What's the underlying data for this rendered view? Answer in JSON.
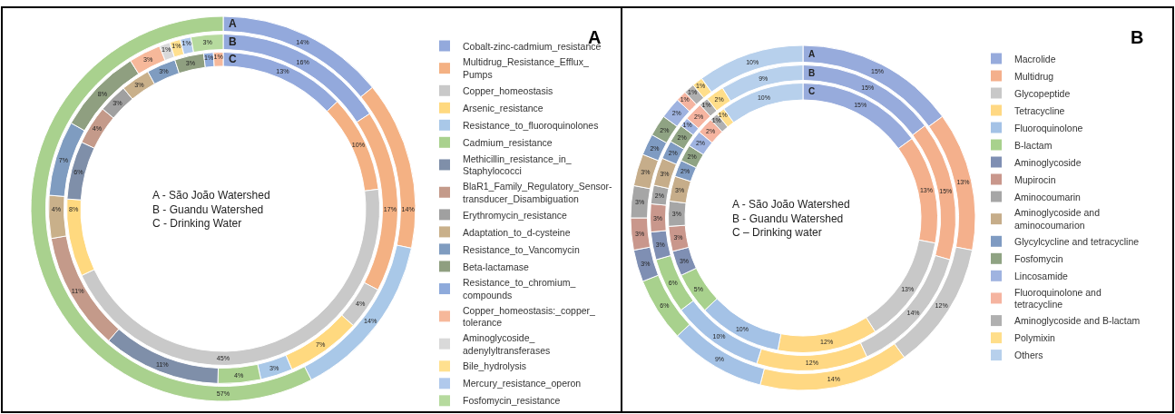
{
  "chart_data": [
    {
      "type": "donut",
      "title": "A",
      "legend": "right",
      "categories": [
        "Cobalt-zinc-cadmium_resistance",
        "Multidrug_Resistance_Efflux_Pumps",
        "Copper_homeostasis",
        "Arsenic_resistance",
        "Resistance_to_fluoroquinolones",
        "Cadmium_resistance",
        "Methicillin_resistance_in_Staphylococci",
        "BlaR1_Family_Regulatory_Sensor-transducer_Disambiguation",
        "Erythromycin_resistance",
        "Adaptation_to_d-cysteine",
        "Resistance_to_Vancomycin",
        "Beta-lactamase",
        "Resistance_to_chromium_compounds",
        "Copper_homeostasis:_copper_tolerance",
        "Aminoglycoside_adenylyltransferases",
        "Bile_hydrolysis",
        "Mercury_resistance_operon",
        "Fosfomycin_resistance"
      ],
      "colors": [
        "#93a9dc",
        "#f4b183",
        "#c9c9c9",
        "#ffd97f",
        "#a9c8e8",
        "#a9d18e",
        "#7f8fa9",
        "#c49a8a",
        "#a0a0a0",
        "#c9b08a",
        "#7f9cc0",
        "#8f9f80",
        "#8eaadb",
        "#f6b89a",
        "#d9d9d9",
        "#ffe08f",
        "#b0c9ec",
        "#b6da9e"
      ],
      "series": [
        {
          "name": "A",
          "values": [
            14,
            14,
            null,
            null,
            14,
            57,
            null,
            null,
            null,
            null,
            null,
            null,
            null,
            null,
            null,
            null,
            null,
            null
          ],
          "value_labels": [
            "14%",
            "14%",
            null,
            null,
            "14%",
            "57%",
            null,
            null,
            null,
            null,
            null,
            null,
            null,
            null,
            null,
            null,
            null,
            null
          ]
        },
        {
          "name": "B",
          "values": [
            16,
            17,
            4,
            7,
            3,
            4,
            11,
            11,
            null,
            4,
            7,
            8,
            null,
            3,
            1,
            1,
            1,
            3
          ],
          "value_labels": [
            "16%",
            "17%",
            "4%",
            "7%",
            "3%",
            "4%",
            "11%",
            "11%",
            null,
            "4%",
            "7%",
            "8%",
            null,
            "3%",
            "1%",
            "1%",
            "1%",
            "3%"
          ]
        },
        {
          "name": "C",
          "values": [
            13,
            10,
            45,
            8,
            null,
            null,
            6,
            4,
            3,
            3,
            3,
            3,
            1,
            1,
            null,
            null,
            null,
            null
          ],
          "value_labels": [
            "13%",
            "10%",
            "45%",
            "8%",
            null,
            null,
            "6%",
            "4%",
            "3%",
            "3%",
            "3%",
            "3%",
            "1%",
            "1%",
            null,
            null,
            null,
            null
          ]
        }
      ],
      "annotations": [
        "A - São João Watershed",
        "B - Guandu Watershed",
        "C - Drinking Water"
      ]
    },
    {
      "type": "donut",
      "title": "B",
      "legend": "right",
      "categories": [
        "Macrolide",
        "Multidrug",
        "Glycopeptide",
        "Tetracycline",
        "Fluoroquinolone",
        "B-lactam",
        "Aminoglycoside",
        "Mupirocin",
        "Aminocoumarin",
        "Aminoglycoside and aminocoumarion",
        "Glycylcycline and tetracycline",
        "Fosfomycin",
        "Lincosamide",
        "Fluoroquinolone and tetracycline",
        "Aminoglycoside and B-lactam",
        "Polymixin",
        "Others"
      ],
      "colors": [
        "#97abdc",
        "#f4b08c",
        "#c8c8c8",
        "#ffd883",
        "#a4c2e6",
        "#a8d18d",
        "#7f8fb3",
        "#c9978c",
        "#a6a6a6",
        "#c6ad8a",
        "#7f9bc2",
        "#8fa383",
        "#9fb3e0",
        "#f5b4a0",
        "#b0b0b0",
        "#ffde8a",
        "#b7d0ec"
      ],
      "series": [
        {
          "name": "A",
          "values": [
            15,
            13,
            12,
            14,
            9,
            6,
            3,
            3,
            3,
            3,
            2,
            2,
            2,
            1,
            1,
            1,
            10
          ],
          "value_labels": [
            "15%",
            "13%",
            "12%",
            "14%",
            "9%",
            "6%",
            "3%",
            "3%",
            "3%",
            "3%",
            "2%",
            "2%",
            "2%",
            "1%",
            "1%",
            "1%",
            "10%"
          ]
        },
        {
          "name": "B",
          "values": [
            15,
            15,
            14,
            12,
            10,
            6,
            3,
            3,
            2,
            3,
            2,
            2,
            1,
            2,
            1,
            2,
            9
          ],
          "value_labels": [
            "15%",
            "15%",
            "14%",
            "12%",
            "10%",
            "6%",
            "3%",
            "3%",
            "2%",
            "3%",
            "2%",
            "2%",
            "1%",
            "2%",
            "1%",
            "2%",
            "9%"
          ]
        },
        {
          "name": "C",
          "values": [
            15,
            13,
            13,
            12,
            10,
            5,
            3,
            3,
            3,
            3,
            2,
            2,
            2,
            2,
            1,
            1,
            10
          ],
          "value_labels": [
            "15%",
            "13%",
            "13%",
            "12%",
            "10%",
            "5%",
            "3%",
            "3%",
            "3%",
            "3%",
            "2%",
            "2%",
            "2%",
            "2%",
            "1%",
            "1%",
            "10%"
          ]
        }
      ],
      "annotations": [
        "A - São João Watershed",
        "B - Guandu Watershed",
        "C – Drinking water"
      ]
    }
  ]
}
